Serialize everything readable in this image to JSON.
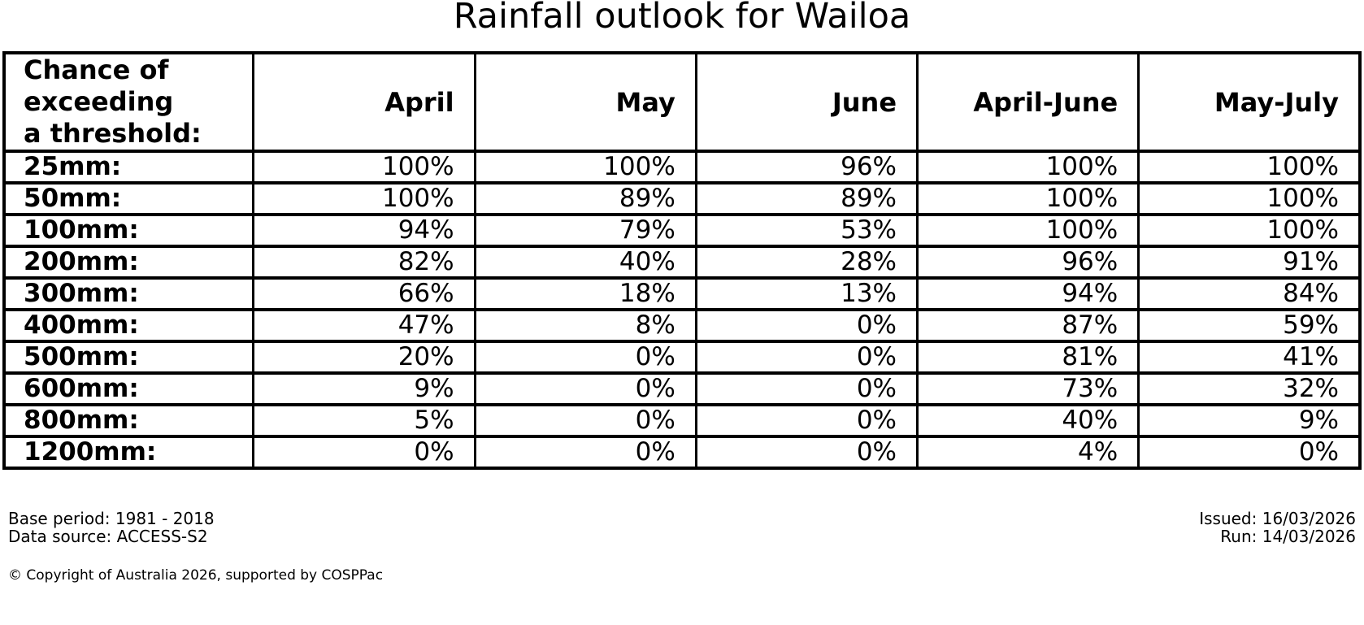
{
  "title": "Rainfall outlook for Wailoa",
  "colors": {
    "background": "#ffffff",
    "text": "#000000",
    "table_border": "#000000"
  },
  "table": {
    "header": {
      "threshold_label": "Chance of\nexceeding\na threshold:",
      "columns": [
        "April",
        "May",
        "June",
        "April-June",
        "May-July"
      ]
    },
    "rows": [
      {
        "label": "25mm:",
        "cells": [
          "100%",
          "100%",
          "96%",
          "100%",
          "100%"
        ]
      },
      {
        "label": "50mm:",
        "cells": [
          "100%",
          "89%",
          "89%",
          "100%",
          "100%"
        ]
      },
      {
        "label": "100mm:",
        "cells": [
          "94%",
          "79%",
          "53%",
          "100%",
          "100%"
        ]
      },
      {
        "label": "200mm:",
        "cells": [
          "82%",
          "40%",
          "28%",
          "96%",
          "91%"
        ]
      },
      {
        "label": "300mm:",
        "cells": [
          "66%",
          "18%",
          "13%",
          "94%",
          "84%"
        ]
      },
      {
        "label": "400mm:",
        "cells": [
          "47%",
          "8%",
          "0%",
          "87%",
          "59%"
        ]
      },
      {
        "label": "500mm:",
        "cells": [
          "20%",
          "0%",
          "0%",
          "81%",
          "41%"
        ]
      },
      {
        "label": "600mm:",
        "cells": [
          "9%",
          "0%",
          "0%",
          "73%",
          "32%"
        ]
      },
      {
        "label": "800mm:",
        "cells": [
          "5%",
          "0%",
          "0%",
          "40%",
          "9%"
        ]
      },
      {
        "label": "1200mm:",
        "cells": [
          "0%",
          "0%",
          "0%",
          "4%",
          "0%"
        ]
      }
    ]
  },
  "footer": {
    "base_period": "Base period: 1981 - 2018",
    "data_source": "Data source: ACCESS-S2",
    "issued": "Issued: 16/03/2026",
    "run": "Run: 14/03/2026",
    "copyright": "© Copyright of Australia 2026, supported by COSPPac"
  },
  "chart_data": {
    "type": "table",
    "title": "Rainfall outlook for Wailoa",
    "columns": [
      "Chance of exceeding a threshold:",
      "April",
      "May",
      "June",
      "April-June",
      "May-July"
    ],
    "units": "percent",
    "thresholds_mm": [
      25,
      50,
      100,
      200,
      300,
      400,
      500,
      600,
      800,
      1200
    ],
    "series": [
      {
        "name": "April",
        "values": [
          100,
          100,
          94,
          82,
          66,
          47,
          20,
          9,
          5,
          0
        ]
      },
      {
        "name": "May",
        "values": [
          100,
          89,
          79,
          40,
          18,
          8,
          0,
          0,
          0,
          0
        ]
      },
      {
        "name": "June",
        "values": [
          96,
          89,
          53,
          28,
          13,
          0,
          0,
          0,
          0,
          0
        ]
      },
      {
        "name": "April-June",
        "values": [
          100,
          100,
          100,
          96,
          94,
          87,
          81,
          73,
          40,
          4
        ]
      },
      {
        "name": "May-July",
        "values": [
          100,
          100,
          100,
          91,
          84,
          59,
          41,
          32,
          9,
          0
        ]
      }
    ],
    "annotations": {
      "base_period": "1981 - 2018",
      "data_source": "ACCESS-S2",
      "issued_date": "16/03/2026",
      "run_date": "14/03/2026"
    }
  }
}
